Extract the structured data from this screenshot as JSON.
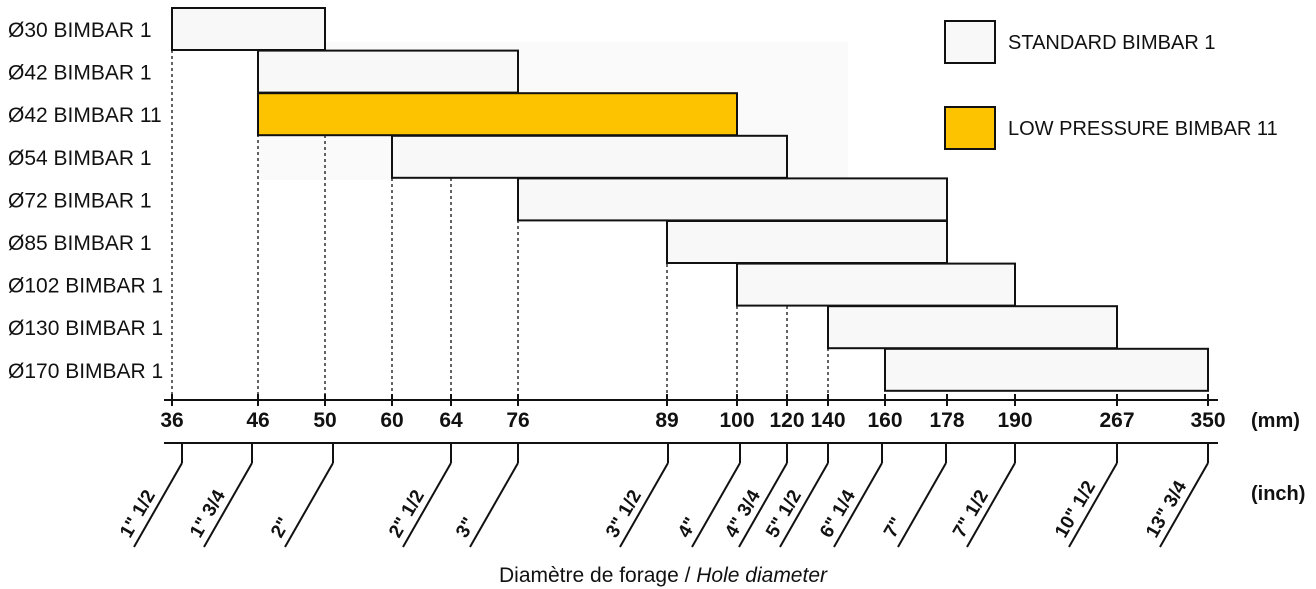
{
  "chart_data": {
    "type": "bar",
    "orientation": "horizontal-range",
    "categories": [
      "Ø30 BIMBAR 1",
      "Ø42 BIMBAR 1",
      "Ø42 BIMBAR 11",
      "Ø54 BIMBAR 1",
      "Ø72 BIMBAR 1",
      "Ø85 BIMBAR 1",
      "Ø102 BIMBAR 1",
      "Ø130 BIMBAR 1",
      "Ø170 BIMBAR 1"
    ],
    "ranges": [
      {
        "category": "Ø30 BIMBAR 1",
        "from": 36,
        "to": 50,
        "series": "STANDARD BIMBAR 1"
      },
      {
        "category": "Ø42 BIMBAR 1",
        "from": 46,
        "to": 76,
        "series": "STANDARD BIMBAR 1"
      },
      {
        "category": "Ø42 BIMBAR 11",
        "from": 46,
        "to": 100,
        "series": "LOW PRESSURE BIMBAR 11"
      },
      {
        "category": "Ø54 BIMBAR 1",
        "from": 60,
        "to": 120,
        "series": "STANDARD BIMBAR 1"
      },
      {
        "category": "Ø72 BIMBAR 1",
        "from": 76,
        "to": 178,
        "series": "STANDARD BIMBAR 1"
      },
      {
        "category": "Ø85 BIMBAR 1",
        "from": 89,
        "to": 178,
        "series": "STANDARD BIMBAR 1"
      },
      {
        "category": "Ø102 BIMBAR 1",
        "from": 100,
        "to": 190,
        "series": "STANDARD BIMBAR 1"
      },
      {
        "category": "Ø130 BIMBAR 1",
        "from": 140,
        "to": 267,
        "series": "STANDARD BIMBAR 1"
      },
      {
        "category": "Ø170 BIMBAR 1",
        "from": 160,
        "to": 350,
        "series": "STANDARD BIMBAR 1"
      }
    ],
    "x_ticks_mm": [
      "36",
      "46",
      "50",
      "60",
      "64",
      "76",
      "89",
      "100",
      "120",
      "140",
      "160",
      "178",
      "190",
      "267",
      "350"
    ],
    "x_unit_mm": "(mm)",
    "x_ticks_inch": [
      "1\" 1/2",
      "1\" 3/4",
      "2\"",
      "2\" 1/2",
      "3\"",
      "3\" 1/2",
      "4\"",
      "4\" 3/4",
      "5\" 1/2",
      "6\" 1/4",
      "7\"",
      "7\" 1/2",
      "10\" 1/2",
      "13\" 3/4"
    ],
    "x_unit_inch": "(inch)",
    "xlabel": "Diamètre de forage /",
    "xlabel_italic": "Hole diameter",
    "legend": [
      {
        "name": "STANDARD BIMBAR 1",
        "color": "#f8f8f8"
      },
      {
        "name": "LOW PRESSURE BIMBAR 11",
        "color": "#fdc300"
      }
    ],
    "legend_position": "top-right",
    "dashed_guides_mm": [
      "36",
      "46",
      "50",
      "60",
      "64",
      "76",
      "89",
      "100",
      "120",
      "140"
    ],
    "colors": {
      "standard": "#f8f8f8",
      "low_pressure": "#fdc300",
      "line": "#111111"
    }
  }
}
